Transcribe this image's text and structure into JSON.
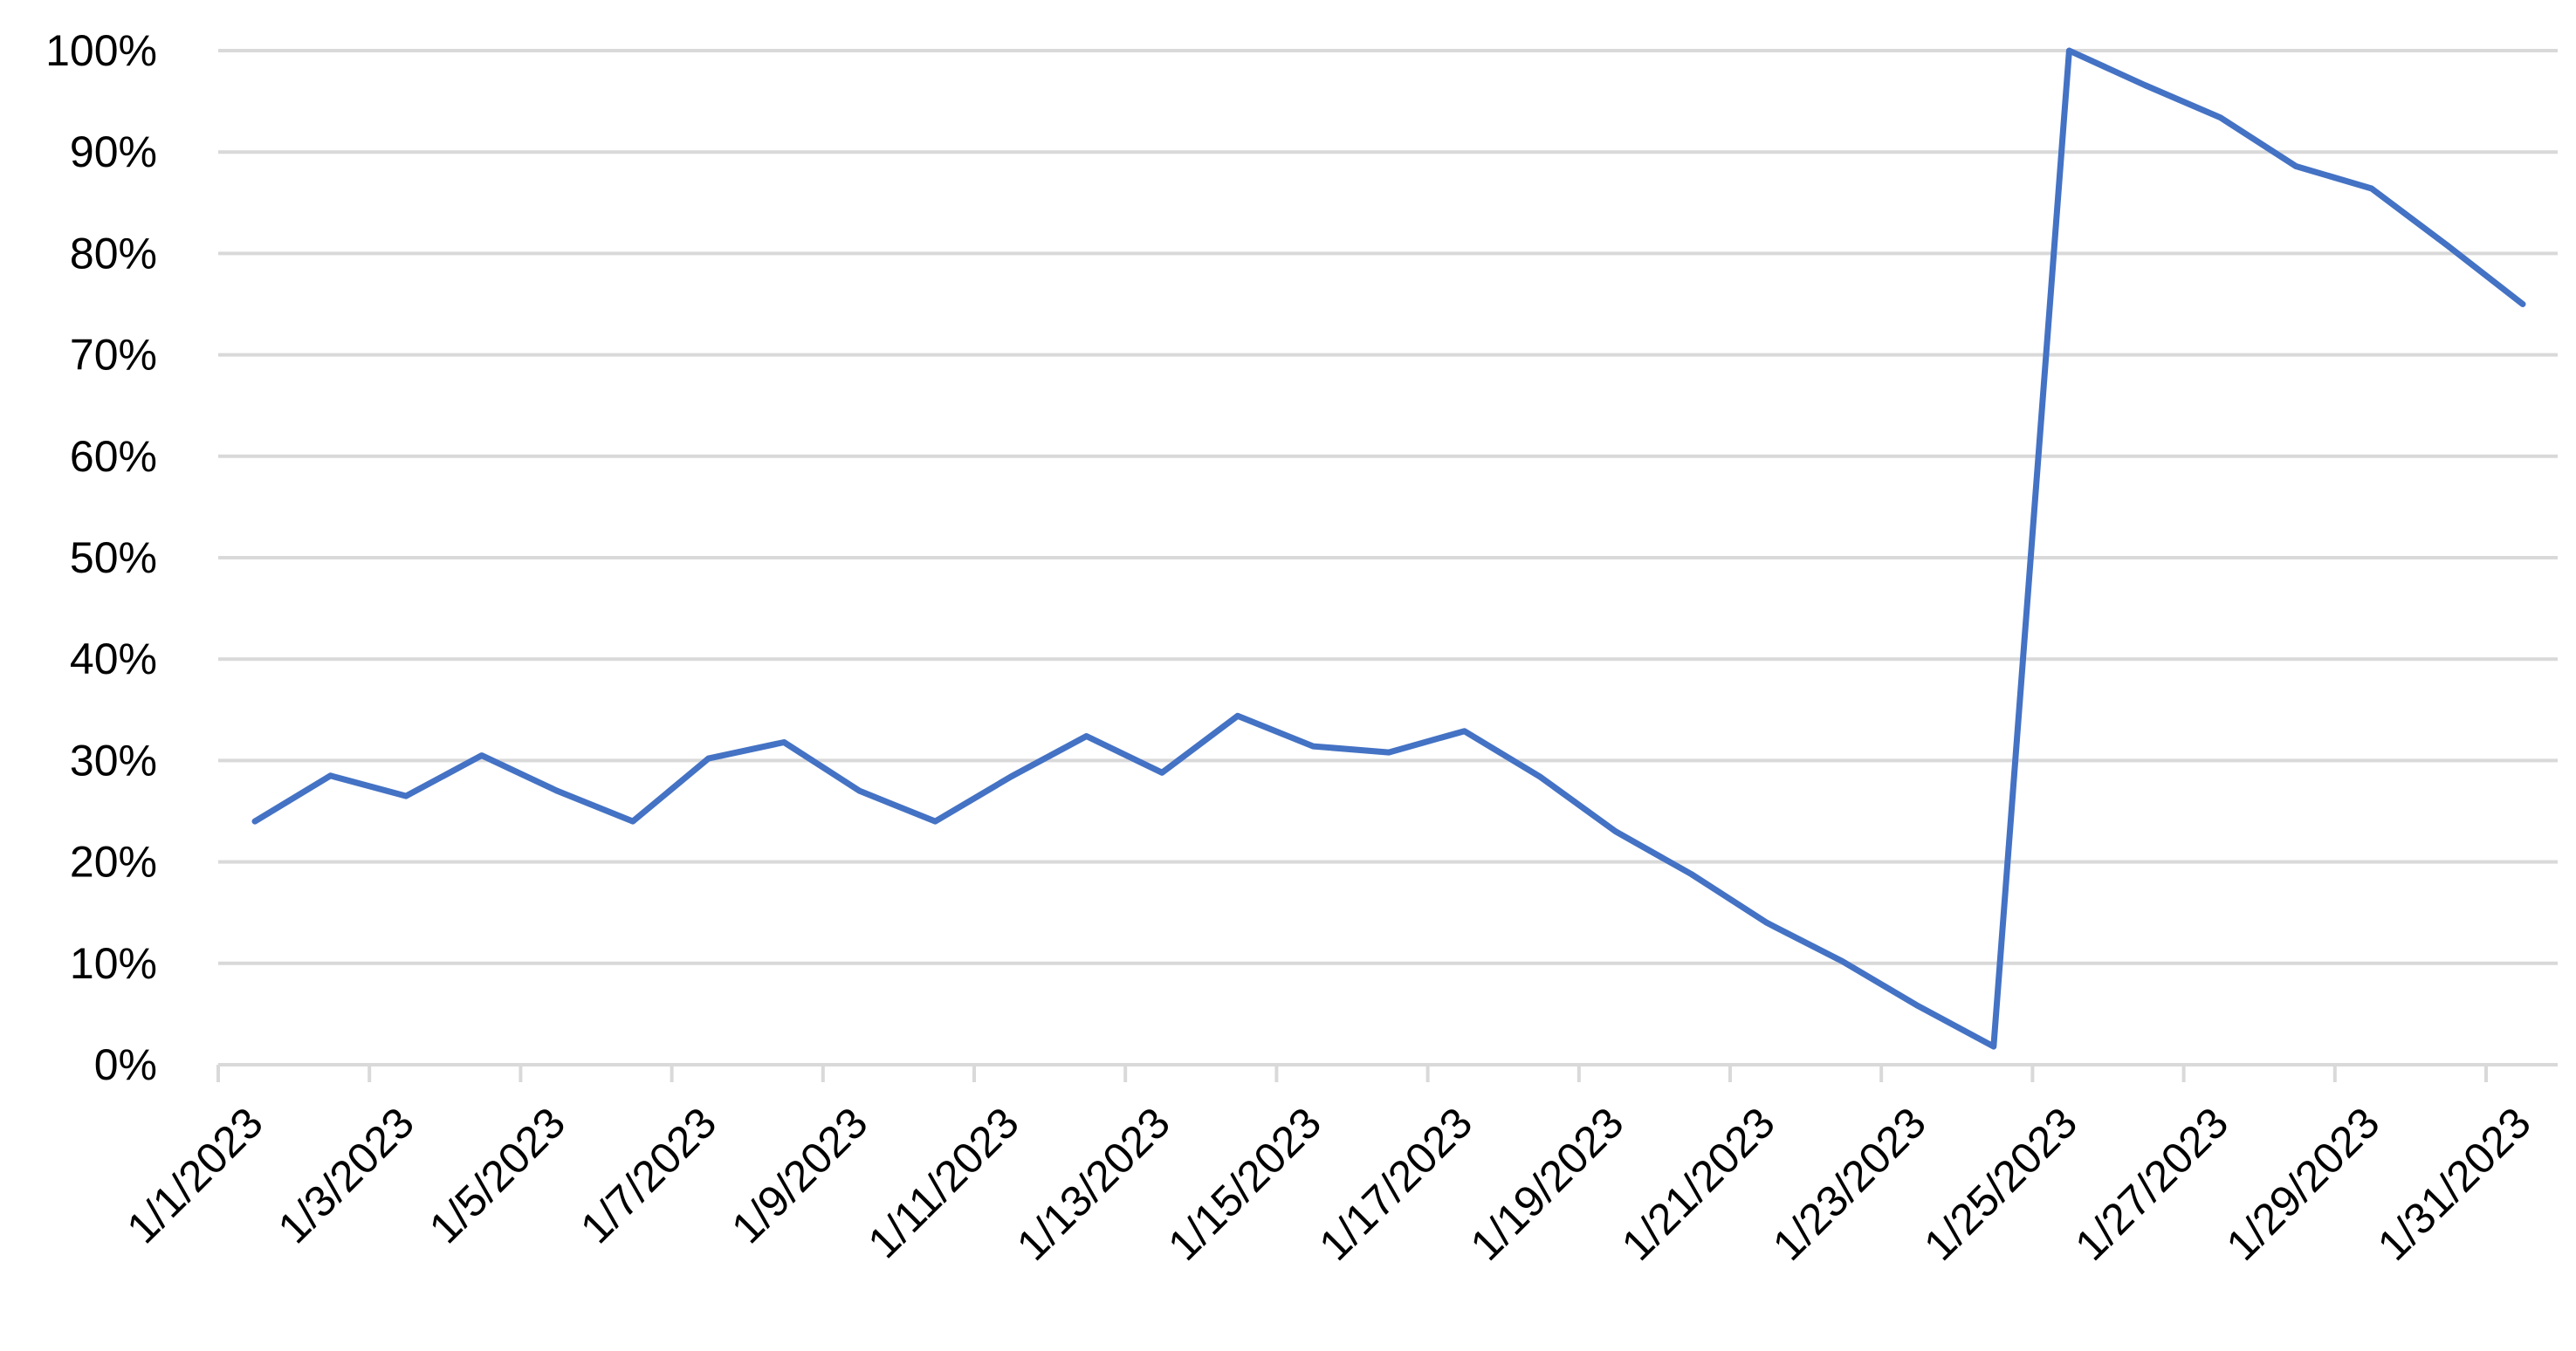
{
  "chart_data": {
    "type": "line",
    "title": "",
    "xlabel": "",
    "ylabel": "",
    "x": [
      "1/1/2023",
      "1/2/2023",
      "1/3/2023",
      "1/4/2023",
      "1/5/2023",
      "1/6/2023",
      "1/7/2023",
      "1/8/2023",
      "1/9/2023",
      "1/10/2023",
      "1/11/2023",
      "1/12/2023",
      "1/13/2023",
      "1/14/2023",
      "1/15/2023",
      "1/16/2023",
      "1/17/2023",
      "1/18/2023",
      "1/19/2023",
      "1/20/2023",
      "1/21/2023",
      "1/22/2023",
      "1/23/2023",
      "1/24/2023",
      "1/25/2023",
      "1/26/2023",
      "1/27/2023",
      "1/28/2023",
      "1/29/2023",
      "1/30/2023",
      "1/31/2023"
    ],
    "x_tick_labels": [
      "1/1/2023",
      "1/3/2023",
      "1/5/2023",
      "1/7/2023",
      "1/9/2023",
      "1/11/2023",
      "1/13/2023",
      "1/15/2023",
      "1/17/2023",
      "1/19/2023",
      "1/21/2023",
      "1/23/2023",
      "1/25/2023",
      "1/27/2023",
      "1/29/2023",
      "1/31/2023"
    ],
    "series": [
      {
        "values": [
          24,
          28.5,
          26.5,
          30.5,
          27,
          24,
          30.2,
          31.8,
          27,
          24,
          28.4,
          32.4,
          28.8,
          34.4,
          31.4,
          30.8,
          32.9,
          28.4,
          23,
          18.8,
          14,
          10.2,
          5.8,
          1.8,
          100,
          96.6,
          93.4,
          88.6,
          86.4,
          80.8,
          75
        ],
        "color": "#4472c4"
      }
    ],
    "ylim": [
      0,
      100
    ],
    "y_ticks": [
      0,
      10,
      20,
      30,
      40,
      50,
      60,
      70,
      80,
      90,
      100
    ],
    "y_tick_labels": [
      "0%",
      "10%",
      "20%",
      "30%",
      "40%",
      "50%",
      "60%",
      "70%",
      "80%",
      "90%",
      "100%"
    ],
    "grid": true,
    "legend": "none"
  },
  "colors": {
    "line": "#4472c4",
    "grid": "#d9d9d9",
    "text": "#000000"
  }
}
